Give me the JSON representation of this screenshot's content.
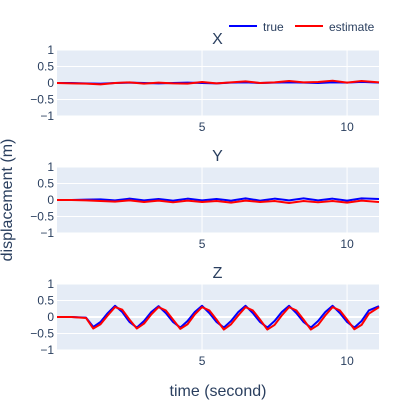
{
  "chart_data": {
    "type": "line",
    "legend": {
      "position": "top-right",
      "entries": [
        "true",
        "estimate"
      ]
    },
    "series_colors": {
      "true": "#0000ff",
      "estimate": "#ff0000"
    },
    "colors": {
      "plot_bg": "#e5ecf6",
      "grid": "#ffffff",
      "text": "#2a3f5f"
    },
    "xlabel": "time (second)",
    "ylabel": "displacement (m)",
    "xlim": [
      0,
      11.1
    ],
    "x_tick_values": [
      5,
      10
    ],
    "x_tick_labels": [
      "5",
      "10"
    ],
    "ylim": [
      -1,
      1
    ],
    "y_tick_values": [
      1,
      0.5,
      0,
      -0.5,
      -1
    ],
    "y_tick_labels": [
      "1",
      "0.5",
      "0",
      "−0.5",
      "−1"
    ],
    "grid": true,
    "panels": [
      {
        "title": "X",
        "x": [
          0,
          0.5,
          1,
          1.5,
          2,
          2.5,
          3,
          3.5,
          4,
          4.5,
          5,
          5.5,
          6,
          6.5,
          7,
          7.5,
          8,
          8.5,
          9,
          9.5,
          10,
          10.5,
          11.1
        ],
        "series": [
          {
            "name": "true",
            "values": [
              0,
              0,
              -0.01,
              -0.02,
              0,
              0.01,
              0,
              -0.01,
              0,
              0.01,
              0,
              -0.01,
              0.01,
              0.02,
              0,
              0.01,
              0.02,
              0.01,
              0,
              0.02,
              0.01,
              0.03,
              0.01
            ]
          },
          {
            "name": "estimate",
            "values": [
              0,
              -0.01,
              -0.02,
              -0.04,
              0,
              0.02,
              -0.02,
              0.01,
              -0.01,
              -0.02,
              0.03,
              -0.01,
              0.02,
              0.05,
              0,
              0.02,
              0.06,
              0.02,
              0.03,
              0.07,
              0.01,
              0.06,
              0.02
            ]
          }
        ]
      },
      {
        "title": "Y",
        "x": [
          0,
          0.5,
          1,
          1.5,
          2,
          2.5,
          3,
          3.5,
          4,
          4.5,
          5,
          5.5,
          6,
          6.5,
          7,
          7.5,
          8,
          8.5,
          9,
          9.5,
          10,
          10.5,
          11.1
        ],
        "series": [
          {
            "name": "true",
            "values": [
              0,
              0,
              0.01,
              0.02,
              -0.01,
              0.04,
              -0.01,
              0.03,
              -0.02,
              0.04,
              -0.01,
              0.03,
              -0.02,
              0.05,
              -0.02,
              0.04,
              -0.01,
              0.05,
              -0.01,
              0.04,
              -0.02,
              0.05,
              0.03
            ]
          },
          {
            "name": "estimate",
            "values": [
              0,
              0,
              -0.01,
              -0.03,
              -0.05,
              -0.01,
              -0.06,
              -0.02,
              -0.07,
              -0.02,
              -0.06,
              -0.03,
              -0.08,
              -0.02,
              -0.06,
              -0.03,
              -0.09,
              -0.03,
              -0.07,
              -0.03,
              -0.08,
              -0.02,
              -0.06
            ]
          }
        ]
      },
      {
        "title": "Z",
        "x": [
          0,
          0.5,
          1,
          1.25,
          1.5,
          1.75,
          2,
          2.25,
          2.5,
          2.75,
          3,
          3.25,
          3.5,
          3.75,
          4,
          4.25,
          4.5,
          4.75,
          5,
          5.25,
          5.5,
          5.75,
          6,
          6.25,
          6.5,
          6.75,
          7,
          7.25,
          7.5,
          7.75,
          8,
          8.25,
          8.5,
          8.75,
          9,
          9.25,
          9.5,
          9.75,
          10,
          10.25,
          10.5,
          10.75,
          11.1
        ],
        "series": [
          {
            "name": "true",
            "values": [
              0,
              0,
              -0.02,
              -0.3,
              -0.15,
              0.12,
              0.34,
              0.15,
              -0.15,
              -0.32,
              -0.12,
              0.15,
              0.33,
              0.12,
              -0.15,
              -0.32,
              -0.12,
              0.15,
              0.34,
              0.12,
              -0.15,
              -0.32,
              -0.12,
              0.15,
              0.34,
              0.12,
              -0.15,
              -0.32,
              -0.12,
              0.15,
              0.34,
              0.12,
              -0.15,
              -0.32,
              -0.12,
              0.15,
              0.34,
              0.12,
              -0.15,
              -0.32,
              -0.12,
              0.2,
              0.33
            ]
          },
          {
            "name": "estimate",
            "values": [
              0,
              0,
              -0.03,
              -0.35,
              -0.22,
              0.05,
              0.3,
              0.22,
              -0.08,
              -0.35,
              -0.2,
              0.08,
              0.3,
              0.2,
              -0.08,
              -0.36,
              -0.22,
              0.08,
              0.3,
              0.2,
              -0.08,
              -0.38,
              -0.22,
              0.05,
              0.3,
              0.2,
              -0.08,
              -0.38,
              -0.24,
              0.05,
              0.3,
              0.2,
              -0.08,
              -0.38,
              -0.24,
              0.05,
              0.3,
              0.2,
              -0.08,
              -0.37,
              -0.24,
              0.1,
              0.3
            ]
          }
        ]
      }
    ]
  }
}
